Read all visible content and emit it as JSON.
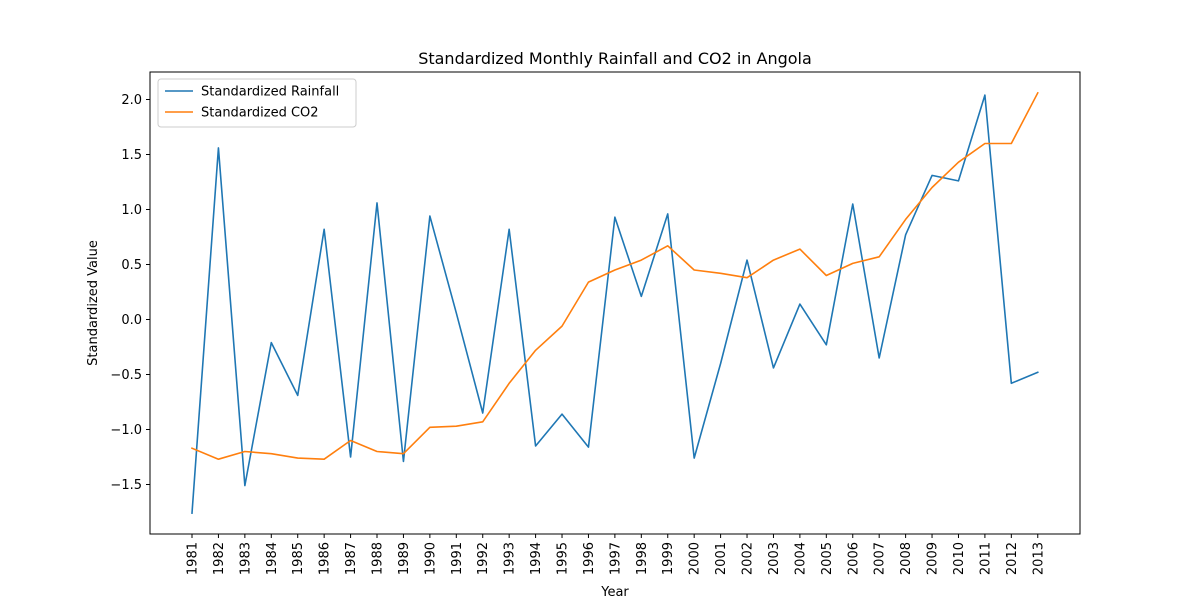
{
  "chart_data": {
    "type": "line",
    "title": "Standardized Monthly Rainfall and CO2 in Angola",
    "xlabel": "Year",
    "ylabel": "Standardized Value",
    "x": [
      "1981",
      "1982",
      "1983",
      "1984",
      "1985",
      "1986",
      "1987",
      "1988",
      "1989",
      "1990",
      "1991",
      "1992",
      "1993",
      "1994",
      "1995",
      "1996",
      "1997",
      "1998",
      "1999",
      "2000",
      "2001",
      "2002",
      "2003",
      "2004",
      "2005",
      "2006",
      "2007",
      "2008",
      "2009",
      "2010",
      "2011",
      "2012",
      "2013"
    ],
    "ylim": [
      -1.95,
      2.25
    ],
    "yticks": [
      -1.5,
      -1.0,
      -0.5,
      0.0,
      0.5,
      1.0,
      1.5,
      2.0
    ],
    "ytick_labels": [
      "−1.5",
      "−1.0",
      "−0.5",
      "0.0",
      "0.5",
      "1.0",
      "1.5",
      "2.0"
    ],
    "grid": false,
    "legend_position": "top-left",
    "series": [
      {
        "name": "Standardized Rainfall",
        "color": "#1f77b4",
        "values": [
          -1.76,
          1.56,
          -1.51,
          -0.21,
          -0.69,
          0.82,
          -1.25,
          1.06,
          -1.29,
          0.94,
          0.06,
          -0.85,
          0.82,
          -1.15,
          -0.86,
          -1.16,
          0.93,
          0.21,
          0.96,
          -1.26,
          -0.4,
          0.54,
          -0.44,
          0.14,
          -0.23,
          1.05,
          -0.35,
          0.77,
          1.31,
          1.26,
          2.04,
          -0.58,
          -0.48
        ]
      },
      {
        "name": "Standardized CO2",
        "color": "#ff7f0e",
        "values": [
          -1.17,
          -1.27,
          -1.2,
          -1.22,
          -1.26,
          -1.27,
          -1.1,
          -1.2,
          -1.22,
          -0.98,
          -0.97,
          -0.93,
          -0.58,
          -0.28,
          -0.06,
          0.34,
          0.45,
          0.54,
          0.67,
          0.45,
          0.42,
          0.38,
          0.54,
          0.64,
          0.4,
          0.51,
          0.57,
          0.91,
          1.2,
          1.43,
          1.6,
          1.6,
          2.06
        ]
      }
    ]
  }
}
